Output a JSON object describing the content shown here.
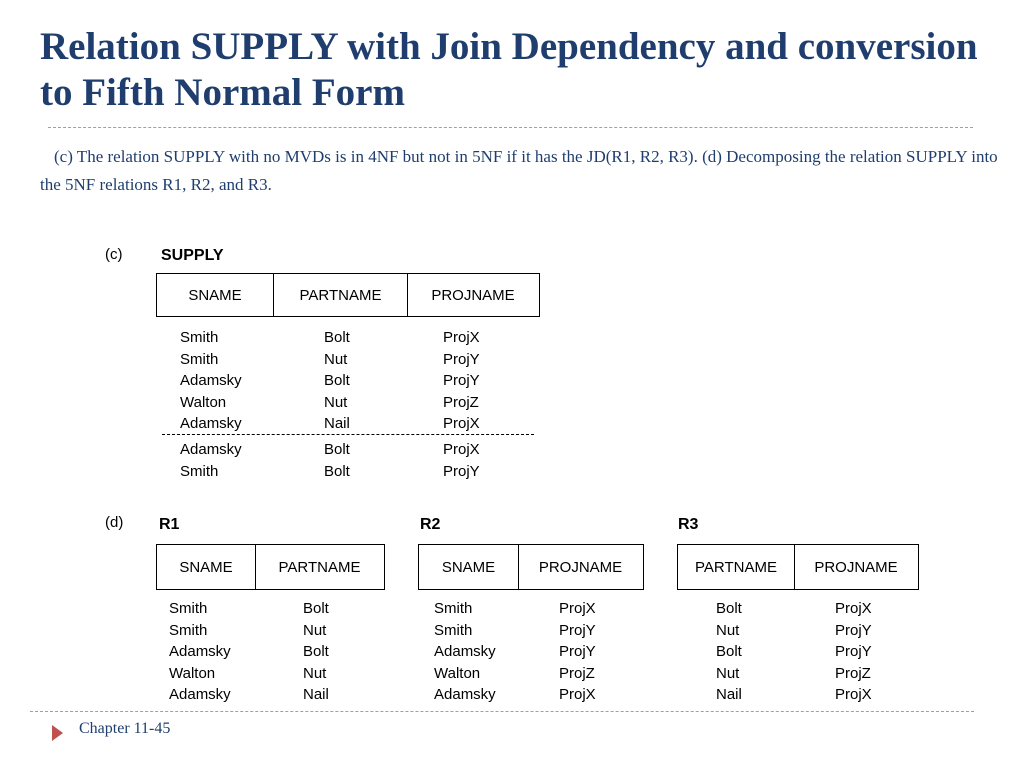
{
  "slide": {
    "title": "Relation SUPPLY with Join Dependency and conversion to Fifth Normal Form",
    "subtitle": "(c) The relation SUPPLY with no MVDs is in 4NF but not in 5NF if it has the JD(R1, R2, R3). (d) Decomposing the relation SUPPLY into the 5NF relations R1, R2, and R3.",
    "footer": "Chapter 11-45"
  },
  "part_c": {
    "label": "(c)",
    "relation": "SUPPLY",
    "columns": [
      "SNAME",
      "PARTNAME",
      "PROJNAME"
    ],
    "rows": [
      [
        "Smith",
        "Bolt",
        "ProjX"
      ],
      [
        "Smith",
        "Nut",
        "ProjY"
      ],
      [
        "Adamsky",
        "Bolt",
        "ProjY"
      ],
      [
        "Walton",
        "Nut",
        "ProjZ"
      ],
      [
        "Adamsky",
        "Nail",
        "ProjX"
      ]
    ],
    "extra_rows": [
      [
        "Adamsky",
        "Bolt",
        "ProjX"
      ],
      [
        "Smith",
        "Bolt",
        "ProjY"
      ]
    ]
  },
  "part_d": {
    "label": "(d)",
    "r1": {
      "name": "R1",
      "columns": [
        "SNAME",
        "PARTNAME"
      ],
      "rows": [
        [
          "Smith",
          "Bolt"
        ],
        [
          "Smith",
          "Nut"
        ],
        [
          "Adamsky",
          "Bolt"
        ],
        [
          "Walton",
          "Nut"
        ],
        [
          "Adamsky",
          "Nail"
        ]
      ]
    },
    "r2": {
      "name": "R2",
      "columns": [
        "SNAME",
        "PROJNAME"
      ],
      "rows": [
        [
          "Smith",
          "ProjX"
        ],
        [
          "Smith",
          "ProjY"
        ],
        [
          "Adamsky",
          "ProjY"
        ],
        [
          "Walton",
          "ProjZ"
        ],
        [
          "Adamsky",
          "ProjX"
        ]
      ]
    },
    "r3": {
      "name": "R3",
      "columns": [
        "PARTNAME",
        "PROJNAME"
      ],
      "rows": [
        [
          "Bolt",
          "ProjX"
        ],
        [
          "Nut",
          "ProjY"
        ],
        [
          "Bolt",
          "ProjY"
        ],
        [
          "Nut",
          "ProjZ"
        ],
        [
          "Nail",
          "ProjX"
        ]
      ]
    }
  },
  "colors": {
    "title": "#1f3e6e",
    "rule": "#d98a80",
    "arrow": "#c0504d"
  }
}
